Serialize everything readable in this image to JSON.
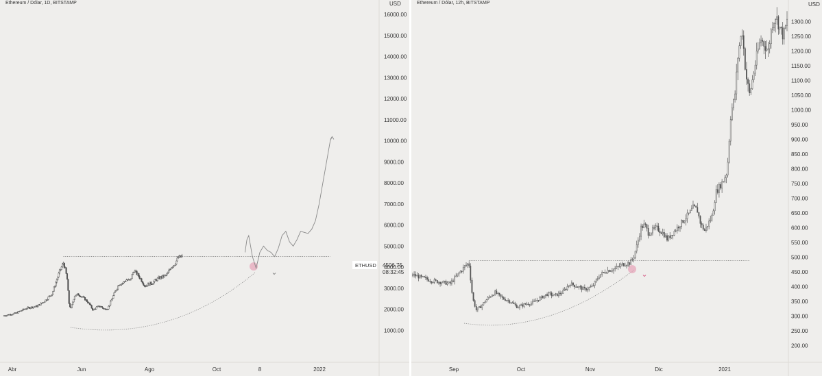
{
  "colors": {
    "background": "#efeeec",
    "candle": "#555555",
    "drawing": "#888888",
    "highlight": "#e7a3b8",
    "arrow_down": "#d6658c",
    "label_box": "#ffffff"
  },
  "left_chart": {
    "title": "Ethereum / Dólar, 1D, BITSTAMP",
    "currency": "USD",
    "price_tag": {
      "symbol": "ETHUSD",
      "price": "4506.75",
      "countdown": "08:32:45"
    }
  },
  "right_chart": {
    "title": "Ethereum / Dólar, 12h, BITSTAMP",
    "currency": "USD"
  },
  "chart_data": [
    {
      "type": "candlestick",
      "title": "Ethereum / Dólar, 1D, BITSTAMP",
      "y_unit": "USD",
      "ylim": [
        0,
        16300
      ],
      "y_ticks": [
        "16000.00",
        "15000.00",
        "14000.00",
        "13000.00",
        "12000.00",
        "11000.00",
        "10000.00",
        "9000.00",
        "8000.00",
        "7000.00",
        "6000.00",
        "5000.00",
        "4000.00",
        "3000.00",
        "2000.00",
        "1000.00"
      ],
      "x_ticks": [
        "Abr",
        "Jun",
        "Ago",
        "Oct",
        "8",
        "2022"
      ],
      "price_path": [
        [
          0,
          1700
        ],
        [
          3,
          1800
        ],
        [
          6,
          2050
        ],
        [
          9,
          2150
        ],
        [
          11,
          2400
        ],
        [
          13,
          2750
        ],
        [
          14,
          3300
        ],
        [
          15,
          3800
        ],
        [
          16,
          4200
        ],
        [
          16.5,
          3900
        ],
        [
          17,
          3450
        ],
        [
          17.5,
          2300
        ],
        [
          18,
          2000
        ],
        [
          19,
          2650
        ],
        [
          20,
          2700
        ],
        [
          21,
          2600
        ],
        [
          22,
          2450
        ],
        [
          23,
          2250
        ],
        [
          24,
          1950
        ],
        [
          25,
          2100
        ],
        [
          26,
          2150
        ],
        [
          27,
          2000
        ],
        [
          28,
          2050
        ],
        [
          29,
          2450
        ],
        [
          30,
          2850
        ],
        [
          31,
          3200
        ],
        [
          32,
          3250
        ],
        [
          33,
          3400
        ],
        [
          34,
          3350
        ],
        [
          35,
          3850
        ],
        [
          36,
          3650
        ],
        [
          37,
          3400
        ],
        [
          38,
          3100
        ],
        [
          39,
          3200
        ],
        [
          40,
          3250
        ],
        [
          41,
          3400
        ],
        [
          42,
          3500
        ],
        [
          43,
          3550
        ],
        [
          44,
          3650
        ],
        [
          45,
          4000
        ],
        [
          46,
          4150
        ],
        [
          47,
          4450
        ],
        [
          48,
          4500
        ]
      ],
      "resistance_line": {
        "x": [
          16,
          88
        ],
        "y": 4500
      },
      "projection": [
        [
          65,
          4700
        ],
        [
          65.5,
          5300
        ],
        [
          66,
          5500
        ],
        [
          67,
          4500
        ],
        [
          68,
          3950
        ],
        [
          69,
          4700
        ],
        [
          70,
          5000
        ],
        [
          71,
          4800
        ],
        [
          72,
          4700
        ],
        [
          73,
          4500
        ],
        [
          74,
          4900
        ],
        [
          75,
          5500
        ],
        [
          76,
          5700
        ],
        [
          77,
          5200
        ],
        [
          78,
          5000
        ],
        [
          79,
          5300
        ],
        [
          80,
          5700
        ],
        [
          81,
          5650
        ],
        [
          82,
          5600
        ],
        [
          83,
          5800
        ],
        [
          84,
          6200
        ],
        [
          85,
          7000
        ],
        [
          86,
          8000
        ],
        [
          87,
          9000
        ],
        [
          88,
          10000
        ],
        [
          88.5,
          10200
        ]
      ]
    },
    {
      "type": "candlestick",
      "title": "Ethereum / Dólar, 12h, BITSTAMP",
      "y_unit": "USD",
      "ylim": [
        180,
        1345
      ],
      "y_ticks": [
        "1300.00",
        "1250.00",
        "1200.00",
        "1150.00",
        "1100.00",
        "1050.00",
        "1000.00",
        "950.00",
        "900.00",
        "850.00",
        "800.00",
        "750.00",
        "700.00",
        "650.00",
        "600.00",
        "550.00",
        "500.00",
        "450.00",
        "400.00",
        "350.00",
        "300.00",
        "250.00",
        "200.00"
      ],
      "x_ticks": [
        "Sep",
        "Oct",
        "Nov",
        "Dic",
        "2021"
      ],
      "price_path": [
        [
          0,
          440
        ],
        [
          5,
          420
        ],
        [
          10,
          410
        ],
        [
          12,
          440
        ],
        [
          14,
          470
        ],
        [
          15,
          480
        ],
        [
          16,
          360
        ],
        [
          17,
          320
        ],
        [
          18,
          330
        ],
        [
          20,
          360
        ],
        [
          22,
          380
        ],
        [
          24,
          360
        ],
        [
          26,
          350
        ],
        [
          28,
          330
        ],
        [
          30,
          340
        ],
        [
          32,
          345
        ],
        [
          34,
          360
        ],
        [
          36,
          375
        ],
        [
          38,
          370
        ],
        [
          40,
          380
        ],
        [
          42,
          410
        ],
        [
          44,
          400
        ],
        [
          46,
          390
        ],
        [
          48,
          400
        ],
        [
          50,
          440
        ],
        [
          52,
          455
        ],
        [
          54,
          460
        ],
        [
          56,
          475
        ],
        [
          58,
          480
        ],
        [
          59,
          500
        ],
        [
          60,
          545
        ],
        [
          61,
          600
        ],
        [
          62,
          610
        ],
        [
          63,
          580
        ],
        [
          64,
          590
        ],
        [
          65,
          600
        ],
        [
          66,
          590
        ],
        [
          67,
          580
        ],
        [
          68,
          560
        ],
        [
          70,
          590
        ],
        [
          72,
          620
        ],
        [
          74,
          650
        ],
        [
          75,
          670
        ],
        [
          76,
          660
        ],
        [
          77,
          610
        ],
        [
          78,
          590
        ],
        [
          80,
          640
        ],
        [
          81,
          720
        ],
        [
          82,
          740
        ],
        [
          83,
          760
        ],
        [
          84,
          790
        ],
        [
          85,
          990
        ],
        [
          86,
          1040
        ],
        [
          87,
          1200
        ],
        [
          88,
          1270
        ],
        [
          89,
          1120
        ],
        [
          90,
          1050
        ],
        [
          91,
          1120
        ],
        [
          92,
          1190
        ],
        [
          93,
          1240
        ],
        [
          94,
          1220
        ],
        [
          95,
          1200
        ],
        [
          96,
          1290
        ],
        [
          97,
          1320
        ],
        [
          98,
          1280
        ],
        [
          99,
          1250
        ],
        [
          100,
          1300
        ]
      ],
      "resistance_line": {
        "x": [
          15,
          90
        ],
        "y": 488
      },
      "projection": []
    }
  ]
}
